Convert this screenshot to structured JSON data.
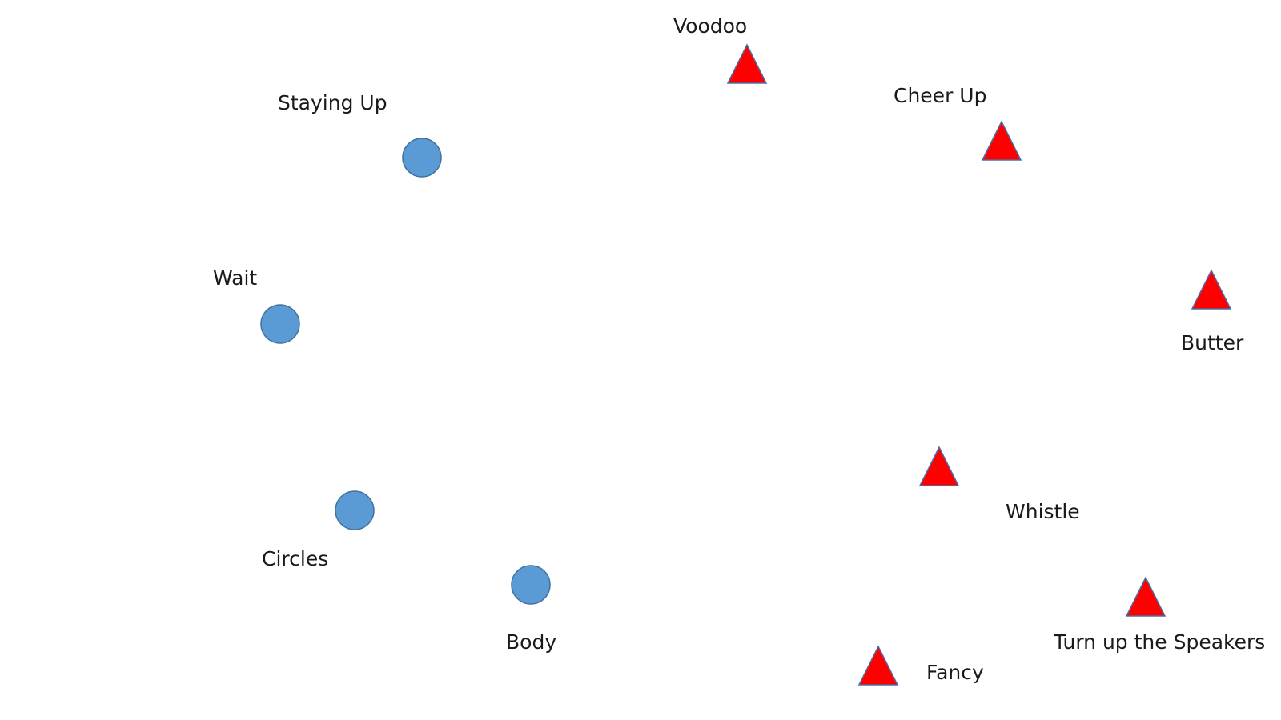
{
  "colors": {
    "circle_fill": "#5b9bd5",
    "circle_stroke": "#41719c",
    "triangle_fill": "#ff0000",
    "triangle_stroke": "#4a6fa5"
  },
  "nodes": {
    "staying_up": {
      "label": "Staying Up",
      "shape": "circle"
    },
    "wait": {
      "label": "Wait",
      "shape": "circle"
    },
    "circles": {
      "label": "Circles",
      "shape": "circle"
    },
    "body": {
      "label": "Body",
      "shape": "circle"
    },
    "voodoo": {
      "label": "Voodoo",
      "shape": "triangle"
    },
    "cheer_up": {
      "label": "Cheer Up",
      "shape": "triangle"
    },
    "butter": {
      "label": "Butter",
      "shape": "triangle"
    },
    "whistle": {
      "label": "Whistle",
      "shape": "triangle"
    },
    "turn_up": {
      "label": "Turn up the Speakers",
      "shape": "triangle"
    },
    "fancy": {
      "label": "Fancy",
      "shape": "triangle"
    }
  }
}
